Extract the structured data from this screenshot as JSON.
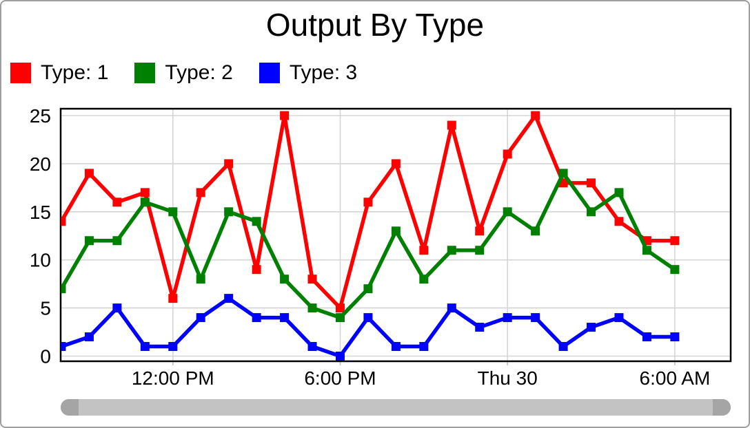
{
  "chart_data": {
    "type": "line",
    "title": "Output By Type",
    "marker": "square",
    "grid": true,
    "legend_position": "top-left",
    "ylim": [
      0,
      25.6
    ],
    "y_ticks": [
      0,
      5,
      10,
      15,
      20,
      25
    ],
    "x_tick_labels": [
      {
        "index": 4,
        "label": "12:00 PM"
      },
      {
        "index": 10,
        "label": "6:00 PM"
      },
      {
        "index": 16,
        "label": "Thu 30"
      },
      {
        "index": 22,
        "label": "6:00 AM"
      }
    ],
    "series": [
      {
        "name": "Type: 1",
        "color": "#ff0000",
        "values": [
          14,
          19,
          16,
          17,
          6,
          17,
          20,
          9,
          25,
          8,
          5,
          16,
          20,
          11,
          24,
          13,
          21,
          25,
          18,
          18,
          14,
          12,
          12
        ]
      },
      {
        "name": "Type: 2",
        "color": "#008000",
        "values": [
          7,
          12,
          12,
          16,
          15,
          8,
          15,
          14,
          8,
          5,
          4,
          7,
          13,
          8,
          11,
          11,
          15,
          13,
          19,
          15,
          17,
          11,
          9
        ]
      },
      {
        "name": "Type: 3",
        "color": "#0000ff",
        "values": [
          1,
          2,
          5,
          1,
          1,
          4,
          6,
          4,
          4,
          1,
          0,
          4,
          1,
          1,
          5,
          3,
          4,
          4,
          1,
          3,
          4,
          2,
          2
        ]
      }
    ]
  },
  "scrollbar": {
    "track_color": "#c3c3c3",
    "handle_color": "#a5a5a5"
  }
}
